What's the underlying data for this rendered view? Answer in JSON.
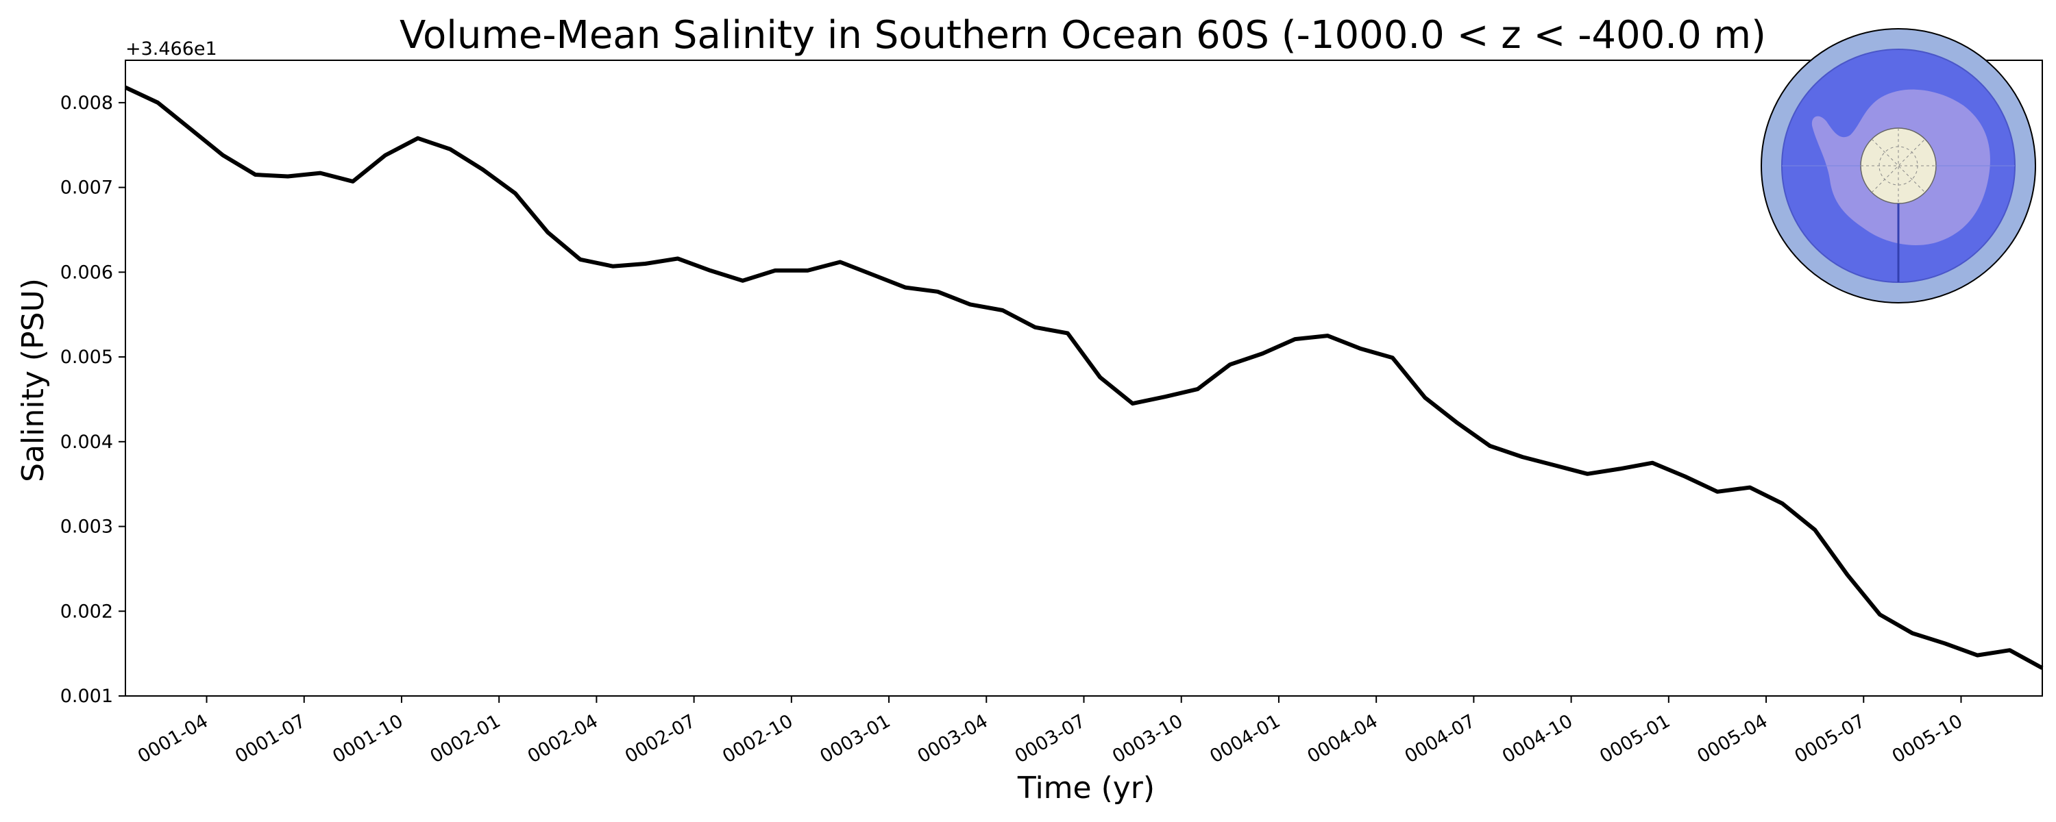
{
  "chart_data": {
    "type": "line",
    "title": "Volume-Mean Salinity in Southern Ocean 60S (-1000.0 < z < -400.0 m)",
    "xlabel": "Time (yr)",
    "ylabel": "Salinity (PSU)",
    "y_offset_label": "+3.466e1",
    "ylim": [
      0.001,
      0.0085
    ],
    "xlim": [
      0,
      59
    ],
    "y_ticks": [
      0.001,
      0.002,
      0.003,
      0.004,
      0.005,
      0.006,
      0.007,
      0.008
    ],
    "y_tick_labels": [
      "0.001",
      "0.002",
      "0.003",
      "0.004",
      "0.005",
      "0.006",
      "0.007",
      "0.008"
    ],
    "x_ticks": [
      2.5,
      5.5,
      8.5,
      11.5,
      14.5,
      17.5,
      20.5,
      23.5,
      26.5,
      29.5,
      32.5,
      35.5,
      38.5,
      41.5,
      44.5,
      47.5,
      50.5,
      53.5,
      56.5
    ],
    "x_tick_labels": [
      "0001-04",
      "0001-07",
      "0001-10",
      "0002-01",
      "0002-04",
      "0002-07",
      "0002-10",
      "0003-01",
      "0003-04",
      "0003-07",
      "0003-10",
      "0004-01",
      "0004-04",
      "0004-07",
      "0004-10",
      "0005-01",
      "0005-04",
      "0005-07",
      "0005-10"
    ],
    "grid": false,
    "series": [
      {
        "name": "Volume-Mean Salinity",
        "color": "#000000",
        "x": [
          0,
          1,
          2,
          3,
          4,
          5,
          6,
          7,
          8,
          9,
          10,
          11,
          12,
          13,
          14,
          15,
          16,
          17,
          18,
          19,
          20,
          21,
          22,
          23,
          24,
          25,
          26,
          27,
          28,
          29,
          30,
          31,
          32,
          33,
          34,
          35,
          36,
          37,
          38,
          39,
          40,
          41,
          42,
          43,
          44,
          45,
          46,
          47,
          48,
          49,
          50,
          51,
          52,
          53,
          54,
          55,
          56,
          57,
          58,
          59
        ],
        "values": [
          0.00818,
          0.008,
          0.00769,
          0.00738,
          0.00715,
          0.00713,
          0.00717,
          0.00707,
          0.00738,
          0.00758,
          0.00745,
          0.00721,
          0.00693,
          0.00647,
          0.00615,
          0.00607,
          0.0061,
          0.00616,
          0.00602,
          0.0059,
          0.00602,
          0.00602,
          0.00612,
          0.00597,
          0.00582,
          0.00577,
          0.00562,
          0.00555,
          0.00535,
          0.00528,
          0.00476,
          0.00445,
          0.00453,
          0.00462,
          0.00491,
          0.00504,
          0.00521,
          0.00525,
          0.0051,
          0.00499,
          0.00452,
          0.00422,
          0.00395,
          0.00382,
          0.00372,
          0.00362,
          0.00368,
          0.00375,
          0.00359,
          0.00341,
          0.00346,
          0.00327,
          0.00296,
          0.00243,
          0.00196,
          0.00174,
          0.00162,
          0.00148,
          0.00154,
          0.00133
        ]
      }
    ]
  },
  "inset_map": {
    "ocean_ring_color": "#9db3e0",
    "region_color": "#5c6ae6",
    "land_color": "#9a94e6",
    "pole_color": "#efecd6",
    "ice_color": "#8fb2d6"
  }
}
